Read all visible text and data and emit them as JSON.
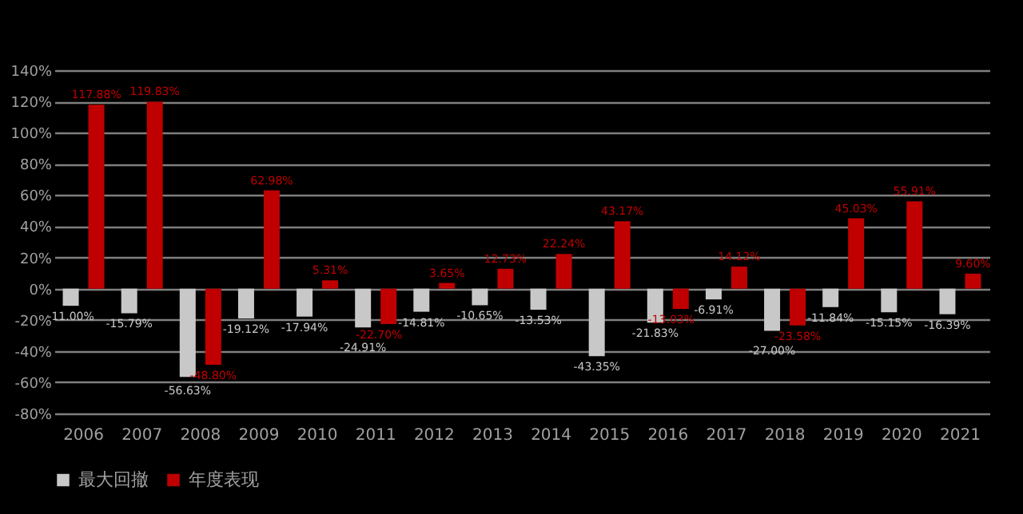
{
  "chart_data": {
    "type": "bar",
    "categories": [
      "2006",
      "2007",
      "2008",
      "2009",
      "2010",
      "2011",
      "2012",
      "2013",
      "2014",
      "2015",
      "2016",
      "2017",
      "2018",
      "2019",
      "2020",
      "2021"
    ],
    "series": [
      {
        "name": "最大回撤",
        "color": "#c8c8c8",
        "values": [
          -11.0,
          -15.79,
          -56.63,
          -19.12,
          -17.94,
          -24.91,
          -14.81,
          -10.65,
          -13.53,
          -43.35,
          -21.83,
          -6.91,
          -27.0,
          -11.84,
          -15.15,
          -16.39
        ],
        "value_labels": [
          "-11.00%",
          "-15.79%",
          "-56.63%",
          "-19.12%",
          "-17.94%",
          "-24.91%",
          "-14.81%",
          "-10.65%",
          "-13.53%",
          "-43.35%",
          "-21.83%",
          "-6.91%",
          "-27.00%",
          "-11.84%",
          "-15.15%",
          "-16.39%"
        ]
      },
      {
        "name": "年度表现",
        "color": "#c00000",
        "values": [
          117.88,
          119.83,
          -48.8,
          62.98,
          5.31,
          -22.7,
          3.65,
          12.73,
          22.24,
          43.17,
          -13.03,
          14.12,
          -23.58,
          45.03,
          55.91,
          9.6
        ],
        "value_labels": [
          "117.88%",
          "119.83%",
          "-48.80%",
          "62.98%",
          "5.31%",
          "-22.70%",
          "3.65%",
          "12.73%",
          "22.24%",
          "43.17%",
          "-13.03%",
          "14.12%",
          "-23.58%",
          "45.03%",
          "55.91%",
          "9.60%"
        ]
      }
    ],
    "ylim": [
      -80,
      140
    ],
    "yticks": [
      {
        "value": -80,
        "label": "-80%"
      },
      {
        "value": -60,
        "label": "-60%"
      },
      {
        "value": -40,
        "label": "-40%"
      },
      {
        "value": -20,
        "label": "-20%"
      },
      {
        "value": 0,
        "label": "0%"
      },
      {
        "value": 20,
        "label": "20%"
      },
      {
        "value": 40,
        "label": "40%"
      },
      {
        "value": 60,
        "label": "60%"
      },
      {
        "value": 80,
        "label": "80%"
      },
      {
        "value": 100,
        "label": "100%"
      },
      {
        "value": 120,
        "label": "120%"
      },
      {
        "value": 140,
        "label": "140%"
      }
    ],
    "grid": "y",
    "legend": "bottom"
  }
}
